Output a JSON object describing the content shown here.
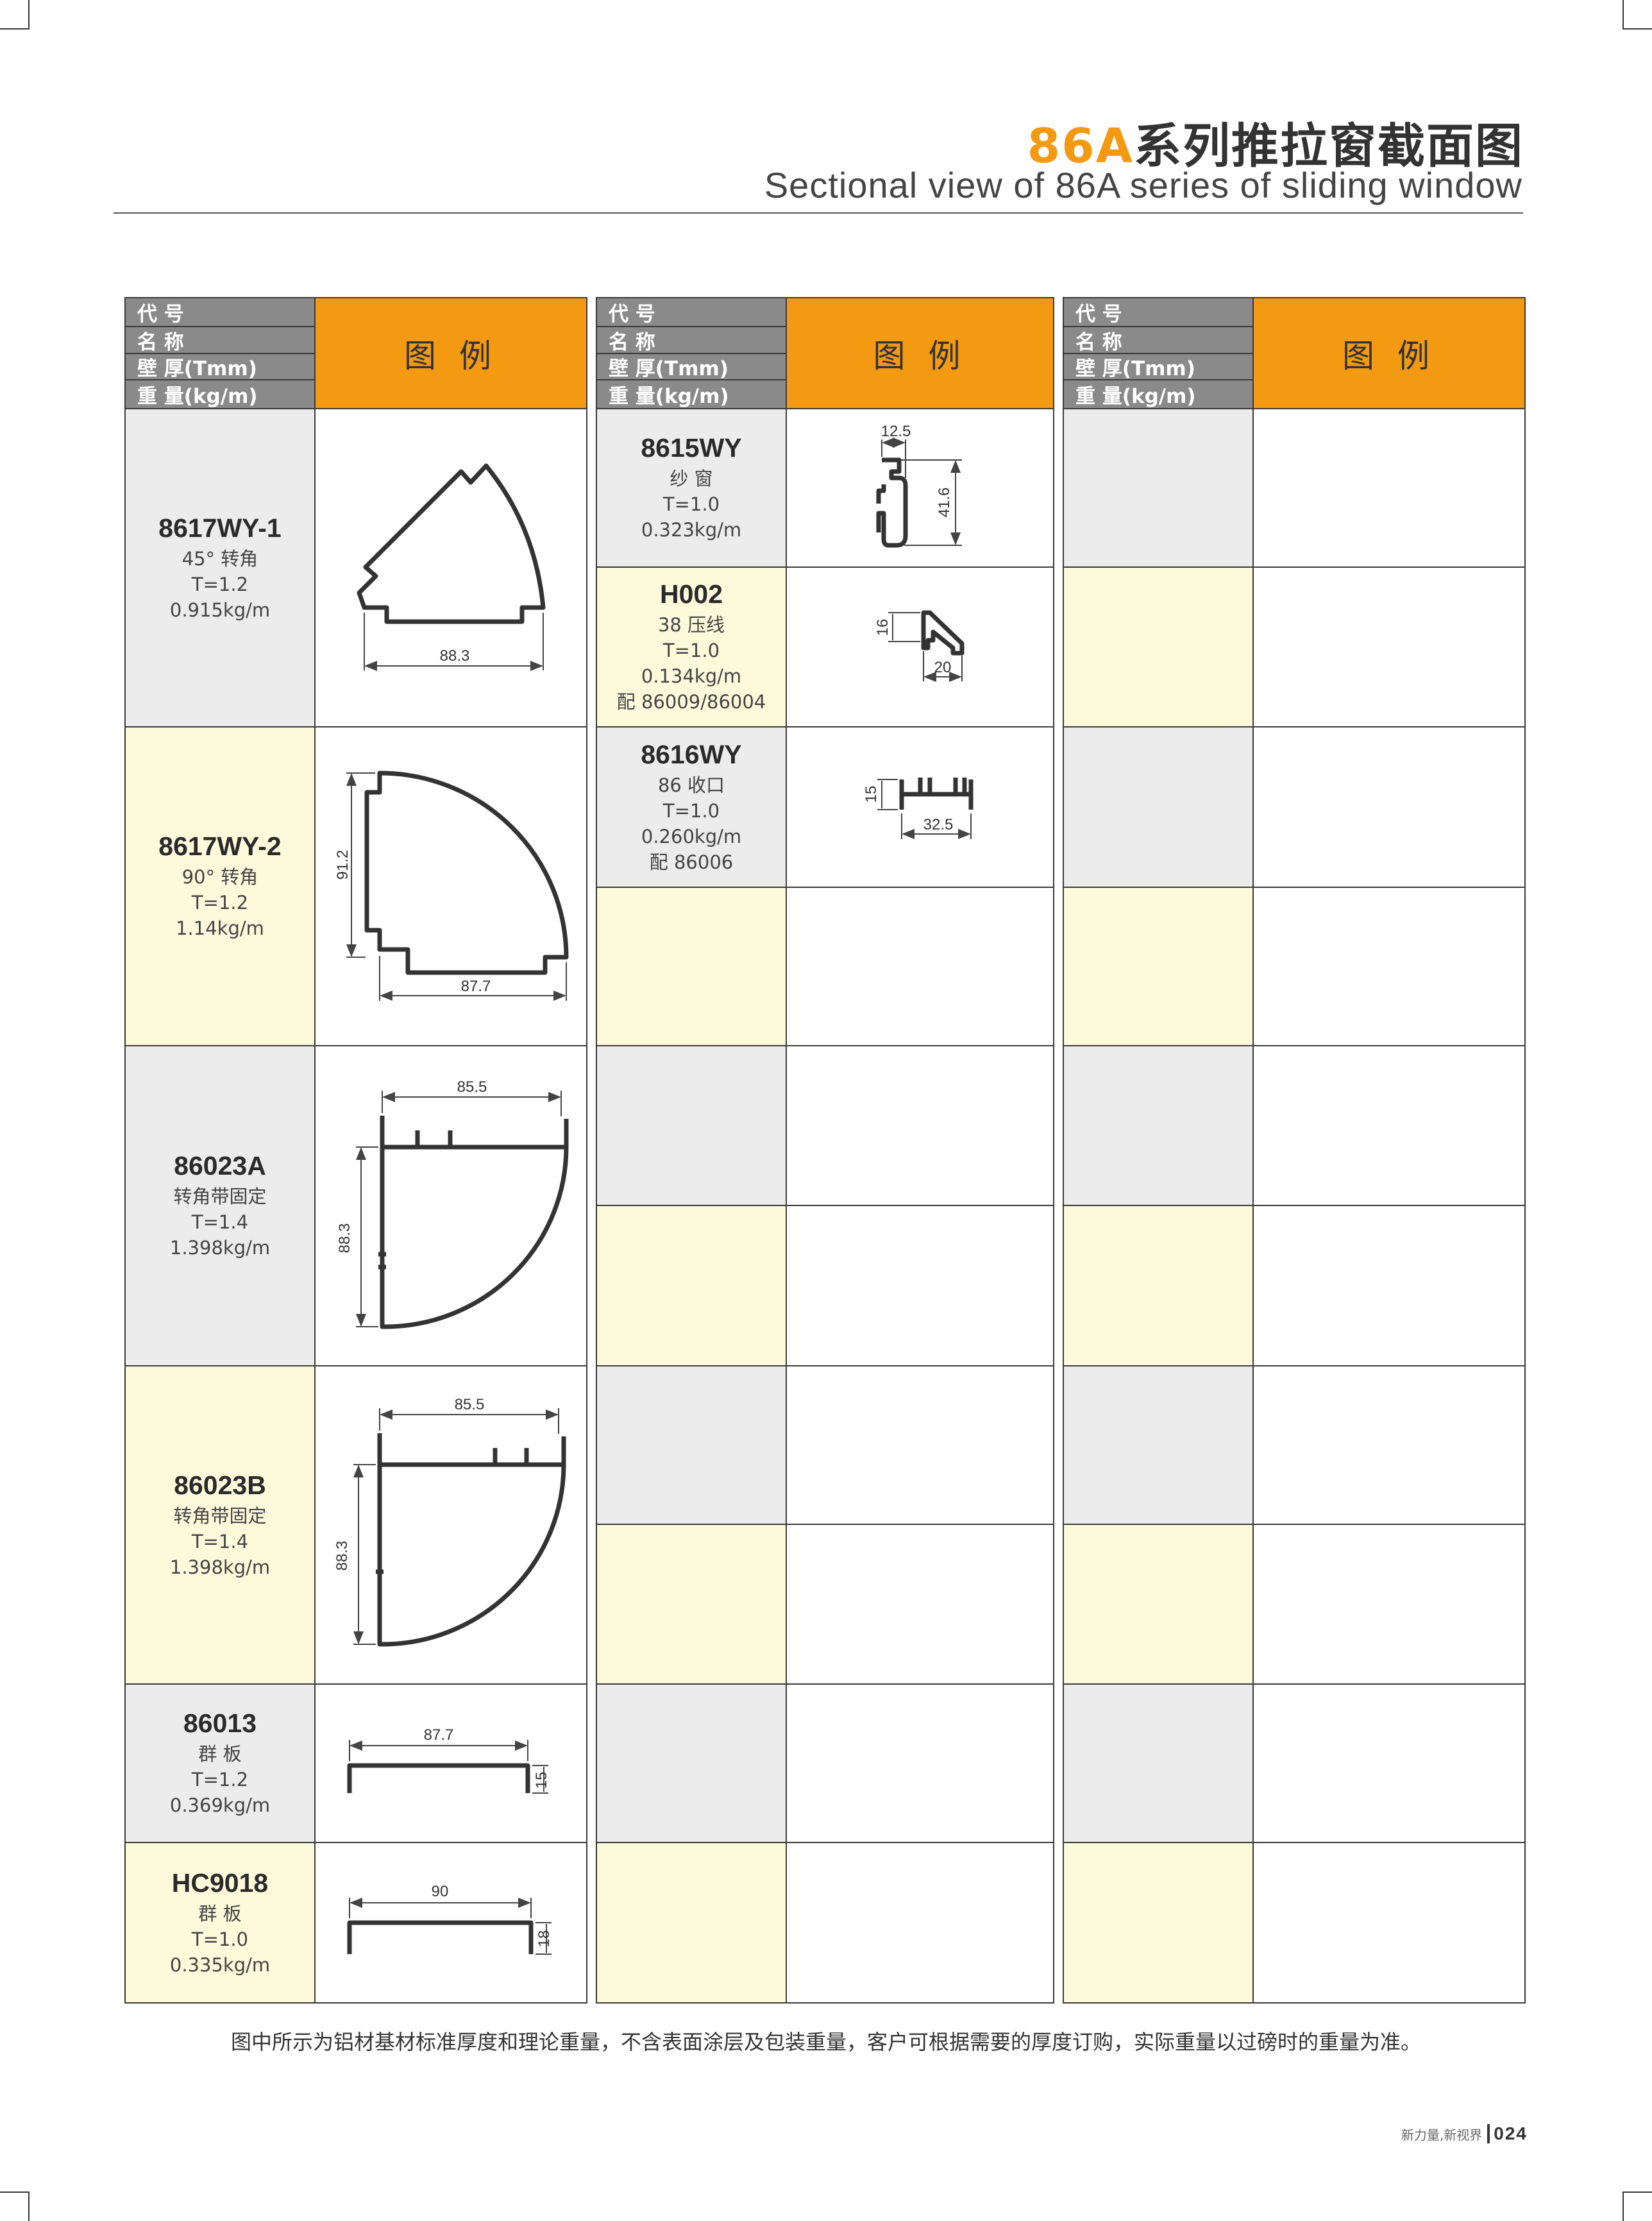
{
  "title": {
    "highlight": "86A",
    "rest": "系列推拉窗截面图",
    "subtitle": "Sectional view of 86A series of sliding window"
  },
  "colors": {
    "accent": "#f39a12",
    "header_grey": "#8a8a8a",
    "cell_grey": "#ececec",
    "cell_yellow": "#fdfadc"
  },
  "header": {
    "code": "代 号",
    "name": "名 称",
    "thickness": "壁 厚(Tmm)",
    "weight": "重 量(kg/m)",
    "legend": "图 例"
  },
  "groups": [
    {
      "cells": [
        {
          "rows": 2,
          "bg": "grey",
          "code": "8617WY-1",
          "lines": [
            "45°  转角",
            "T=1.2",
            "0.915kg/m"
          ]
        },
        {
          "rows": 2,
          "bg": "yellow",
          "code": "8617WY-2",
          "lines": [
            "90°  转角",
            "T=1.2",
            "1.14kg/m"
          ]
        },
        {
          "rows": 2,
          "bg": "grey",
          "code": "86023A",
          "lines": [
            "转角带固定",
            "T=1.4",
            "1.398kg/m"
          ]
        },
        {
          "rows": 2,
          "bg": "yellow",
          "code": "86023B",
          "lines": [
            "转角带固定",
            "T=1.4",
            "1.398kg/m"
          ]
        },
        {
          "rows": 1,
          "bg": "grey",
          "code": "86013",
          "lines": [
            "群 板",
            "T=1.2",
            "0.369kg/m"
          ]
        },
        {
          "rows": 1,
          "bg": "yellow",
          "code": "HC9018",
          "lines": [
            "群 板",
            "T=1.0",
            "0.335kg/m"
          ]
        }
      ]
    },
    {
      "cells": [
        {
          "rows": 1,
          "bg": "grey",
          "code": "8615WY",
          "lines": [
            "纱 窗",
            "T=1.0",
            "0.323kg/m"
          ]
        },
        {
          "rows": 1,
          "bg": "yellow",
          "code": "H002",
          "lines": [
            "38 压线",
            "T=1.0",
            "0.134kg/m",
            "配 86009/86004"
          ]
        },
        {
          "rows": 1,
          "bg": "grey",
          "code": "8616WY",
          "lines": [
            "86 收口",
            "T=1.0",
            "0.260kg/m",
            "配 86006"
          ]
        },
        {
          "rows": 1,
          "bg": "yellow"
        },
        {
          "rows": 1,
          "bg": "grey"
        },
        {
          "rows": 1,
          "bg": "yellow"
        },
        {
          "rows": 1,
          "bg": "grey"
        },
        {
          "rows": 1,
          "bg": "yellow"
        },
        {
          "rows": 1,
          "bg": "grey"
        },
        {
          "rows": 1,
          "bg": "yellow"
        }
      ]
    },
    {
      "cells": [
        {
          "rows": 1,
          "bg": "grey"
        },
        {
          "rows": 1,
          "bg": "yellow"
        },
        {
          "rows": 1,
          "bg": "grey"
        },
        {
          "rows": 1,
          "bg": "yellow"
        },
        {
          "rows": 1,
          "bg": "grey"
        },
        {
          "rows": 1,
          "bg": "yellow"
        },
        {
          "rows": 1,
          "bg": "grey"
        },
        {
          "rows": 1,
          "bg": "yellow"
        },
        {
          "rows": 1,
          "bg": "grey"
        },
        {
          "rows": 1,
          "bg": "yellow"
        }
      ]
    }
  ],
  "dimensions": {
    "d8617wy1": "88.3",
    "d8617wy2_w": "87.7",
    "d8617wy2_h": "91.2",
    "d86023a_w": "85.5",
    "d86023a_h": "88.3",
    "d86023b_w": "85.5",
    "d86023b_h": "88.3",
    "d86013_w": "87.7",
    "d86013_h": "15",
    "dhc9018_w": "90",
    "dhc9018_h": "18",
    "d8615wy_w": "12.5",
    "d8615wy_h": "41.6",
    "dh002_h": "16",
    "dh002_w": "20",
    "d8616wy_h": "15",
    "d8616wy_w": "32.5"
  },
  "footnote": "图中所示为铝材基材标准厚度和理论重量，不含表面涂层及包装重量，客户可根据需要的厚度订购，实际重量以过磅时的重量为准。",
  "footer": {
    "slogan": "新力量,新视界",
    "page": "024"
  }
}
